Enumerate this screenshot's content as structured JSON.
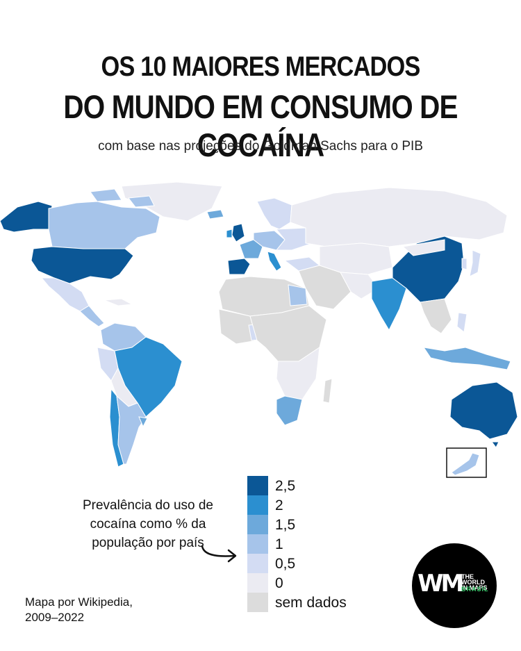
{
  "header": {
    "title_line1": "OS 10 MAIORES MERCADOS",
    "title_line2": "DO MUNDO EM CONSUMO DE COCAÍNA",
    "subtitle": "com base nas projeções do Goldman Sachs para o PIB"
  },
  "legend": {
    "description_lines": [
      "Prevalência do uso de",
      "cocaína como % da",
      "população por país"
    ],
    "items": [
      {
        "label": "2,5",
        "color": "#0b5796"
      },
      {
        "label": "2",
        "color": "#2b8fd0"
      },
      {
        "label": "1,5",
        "color": "#6da9db"
      },
      {
        "label": "1",
        "color": "#a6c4ea"
      },
      {
        "label": "0,5",
        "color": "#d3dcf3"
      },
      {
        "label": "0",
        "color": "#ebebf2"
      },
      {
        "label": "sem dados",
        "color": "#dcdcdc"
      }
    ]
  },
  "credit": {
    "line1": "Mapa por Wikipedia,",
    "line2": "2009–2022"
  },
  "logo": {
    "mark": "WM",
    "line1": "THE WORLD",
    "line2": "IN MAPS",
    "line3": "BRASIL"
  }
}
